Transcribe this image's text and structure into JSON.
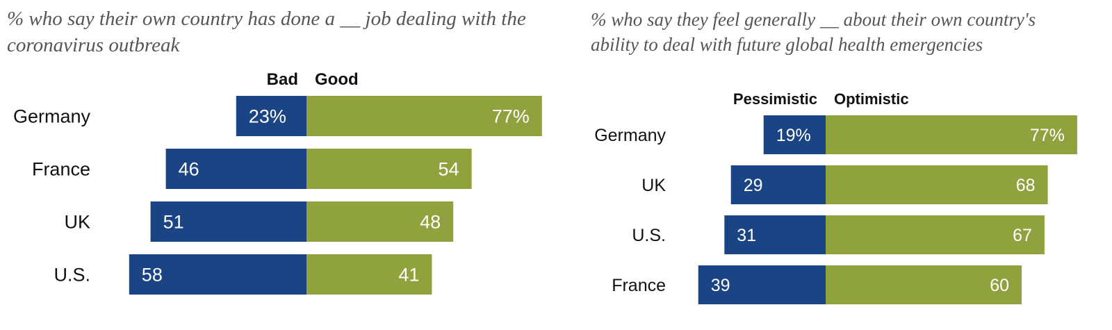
{
  "colors": {
    "negative": "#1b4484",
    "positive": "#8fa23d"
  },
  "chart_data": [
    {
      "type": "bar",
      "subtitle": "% who say their own country has done a __ job dealing with the coronavirus outbreak",
      "legend": [
        "Bad",
        "Good"
      ],
      "categories": [
        "Germany",
        "France",
        "UK",
        "U.S."
      ],
      "series": [
        {
          "name": "Bad",
          "values": [
            23,
            46,
            51,
            58
          ],
          "labels": [
            "23%",
            "46",
            "51",
            "58"
          ]
        },
        {
          "name": "Good",
          "values": [
            77,
            54,
            48,
            41
          ],
          "labels": [
            "77%",
            "54",
            "48",
            "41"
          ]
        }
      ]
    },
    {
      "type": "bar",
      "subtitle": "% who say they feel generally __ about their own country's ability to deal with future global health emergencies",
      "legend": [
        "Pessimistic",
        "Optimistic"
      ],
      "categories": [
        "Germany",
        "UK",
        "U.S.",
        "France"
      ],
      "series": [
        {
          "name": "Pessimistic",
          "values": [
            19,
            29,
            31,
            39
          ],
          "labels": [
            "19%",
            "29",
            "31",
            "39"
          ]
        },
        {
          "name": "Optimistic",
          "values": [
            77,
            68,
            67,
            60
          ],
          "labels": [
            "77%",
            "68",
            "67",
            "60"
          ]
        }
      ]
    }
  ]
}
